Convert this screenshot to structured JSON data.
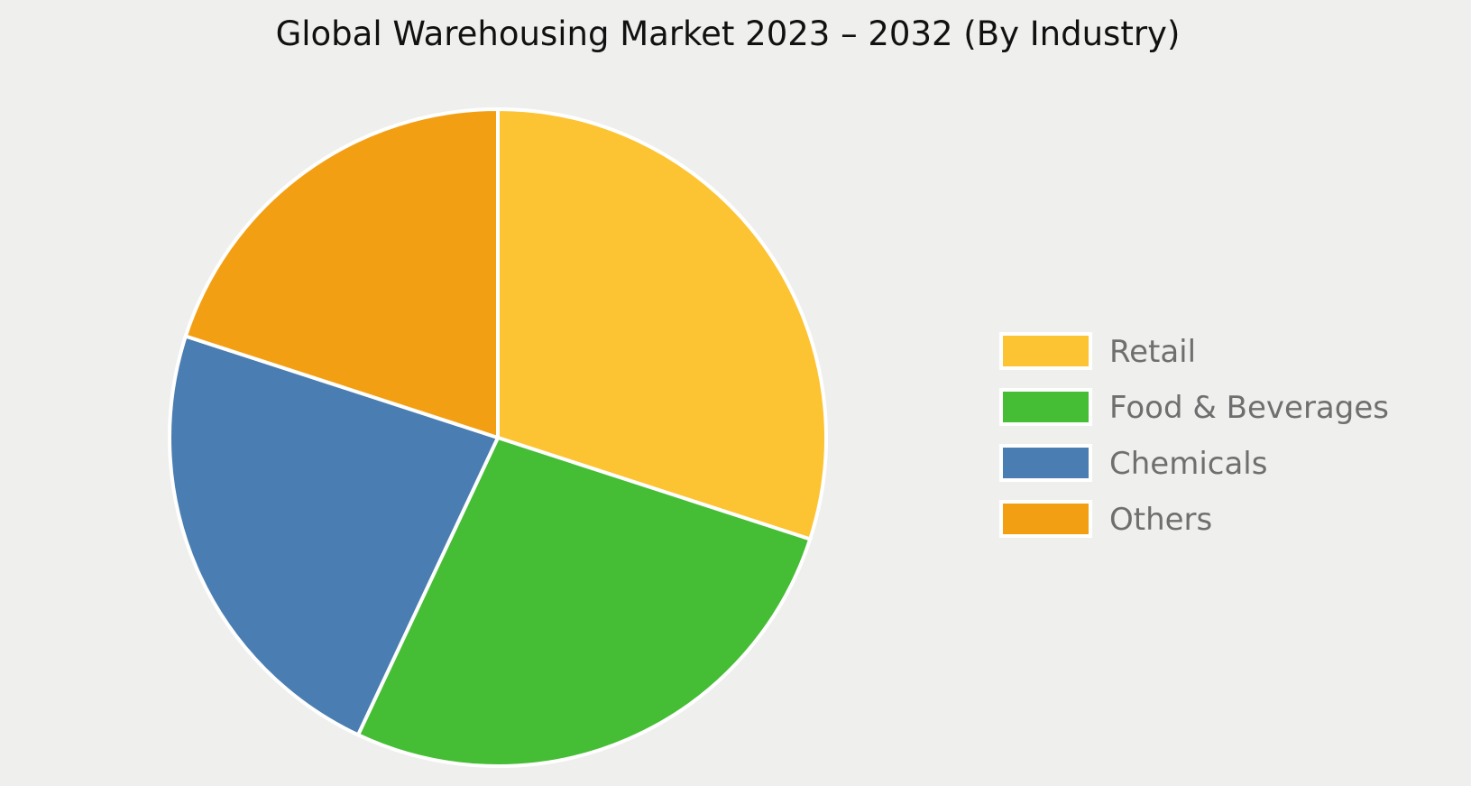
{
  "chart_data": {
    "type": "pie",
    "title": "Global Warehousing Market 2023 – 2032 (By Industry)",
    "categories": [
      "Retail",
      "Food & Beverages",
      "Chemicals",
      "Others"
    ],
    "values": [
      30,
      27,
      23,
      20
    ],
    "colors": [
      "#fcc433",
      "#45bd34",
      "#4a7db1",
      "#f39f14"
    ],
    "start_angle_deg": 0,
    "direction": "clockwise",
    "legend_position": "right"
  }
}
